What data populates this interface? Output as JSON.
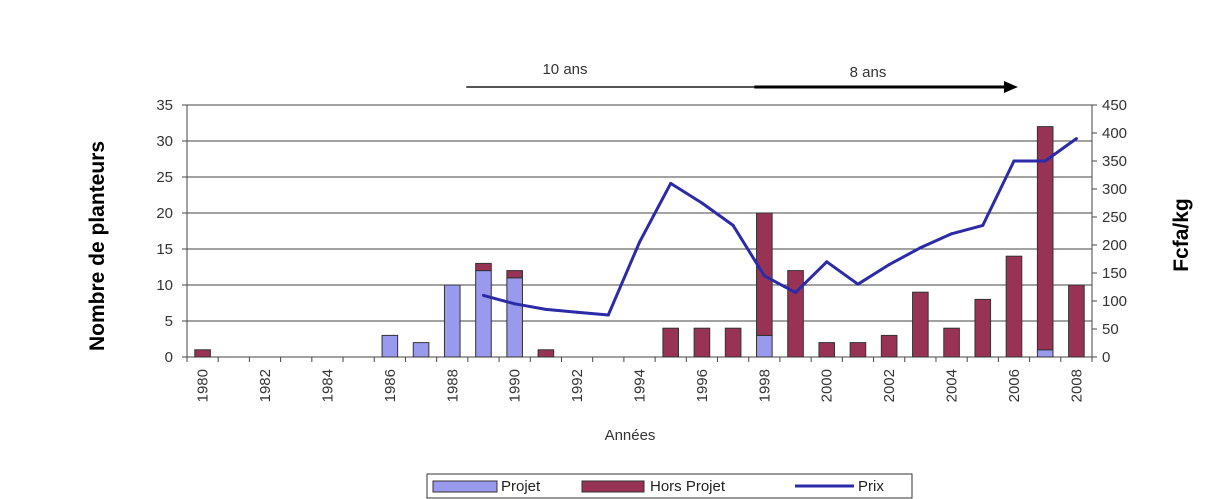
{
  "chart_data": {
    "type": "bar",
    "x": [
      1980,
      1981,
      1982,
      1983,
      1984,
      1985,
      1986,
      1987,
      1988,
      1989,
      1990,
      1991,
      1992,
      1993,
      1994,
      1995,
      1996,
      1997,
      1998,
      1999,
      2000,
      2001,
      2002,
      2003,
      2004,
      2005,
      2006,
      2007,
      2008
    ],
    "x_tick_labels": [
      "1980",
      "1982",
      "1984",
      "1986",
      "1988",
      "1990",
      "1992",
      "1994",
      "1996",
      "1998",
      "2000",
      "2002",
      "2004",
      "2006",
      "2008"
    ],
    "xlabel": "Années",
    "ylabel": "Nombre de planteurs",
    "ylabel_right": "Fcfa/kg",
    "ylim": [
      0,
      35
    ],
    "y_ticks": [
      "0",
      "5",
      "10",
      "15",
      "20",
      "25",
      "30",
      "35"
    ],
    "ylim_right": [
      0,
      450
    ],
    "y_ticks_right": [
      "0",
      "50",
      "100",
      "150",
      "200",
      "250",
      "300",
      "350",
      "400",
      "450"
    ],
    "grid": true,
    "legend_position": "bottom",
    "series": [
      {
        "name": "Projet",
        "type": "bar",
        "color": "#9999ee",
        "values": [
          0,
          0,
          0,
          0,
          0,
          0,
          3,
          2,
          10,
          12,
          11,
          0,
          0,
          0,
          0,
          0,
          0,
          0,
          3,
          0,
          0,
          0,
          0,
          0,
          0,
          0,
          0,
          1,
          0
        ]
      },
      {
        "name": "Hors Projet",
        "type": "bar",
        "color": "#993355",
        "values": [
          1,
          0,
          0,
          0,
          0,
          0,
          0,
          0,
          0,
          1,
          1,
          1,
          0,
          0,
          0,
          4,
          4,
          4,
          17,
          12,
          2,
          2,
          3,
          9,
          4,
          8,
          14,
          31,
          10
        ]
      },
      {
        "name": "Prix",
        "type": "line",
        "axis": "right",
        "color": "#2b2ba8",
        "x": [
          1989,
          1990,
          1991,
          1992,
          1993,
          1994,
          1995,
          1996,
          1997,
          1998,
          1999,
          2000,
          2001,
          2002,
          2003,
          2004,
          2005,
          2006,
          2007,
          2008
        ],
        "values": [
          110,
          95,
          85,
          80,
          75,
          205,
          310,
          275,
          235,
          145,
          115,
          170,
          130,
          165,
          195,
          220,
          235,
          350,
          350,
          390
        ]
      }
    ],
    "annotations": [
      {
        "text": "10 ans",
        "type": "line",
        "from": 1988,
        "to": 1997.5
      },
      {
        "text": "8 ans",
        "type": "arrow",
        "from": 1998,
        "to": 2006
      }
    ]
  }
}
